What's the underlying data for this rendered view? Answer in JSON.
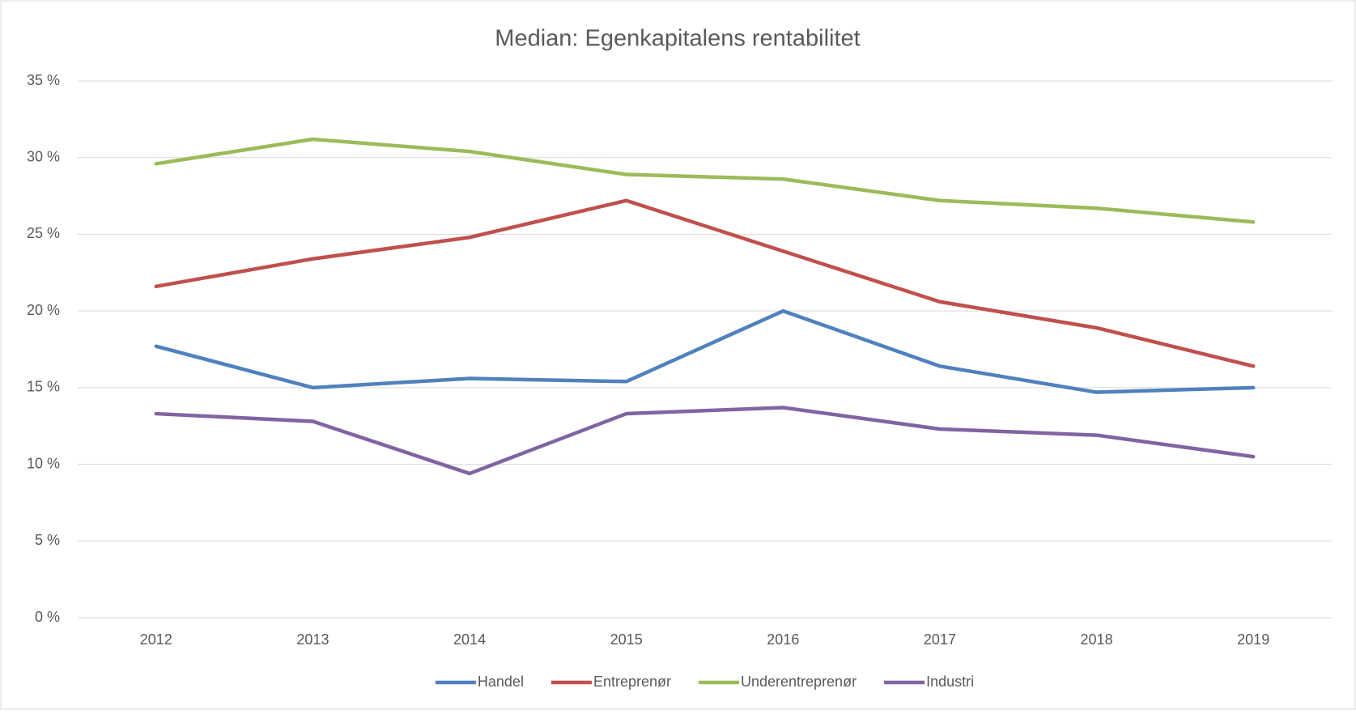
{
  "chart_data": {
    "type": "line",
    "title": "Median: Egenkapitalens rentabilitet",
    "categories": [
      "2012",
      "2013",
      "2014",
      "2015",
      "2016",
      "2017",
      "2018",
      "2019"
    ],
    "series": [
      {
        "name": "Handel",
        "color": "#4f81bd",
        "values": [
          17.7,
          15.0,
          15.6,
          15.4,
          20.0,
          16.4,
          14.7,
          15.0
        ]
      },
      {
        "name": "Entreprenør",
        "color": "#c0504d",
        "values": [
          21.6,
          23.4,
          24.8,
          27.2,
          23.9,
          20.6,
          18.9,
          16.4
        ]
      },
      {
        "name": "Underentreprenør",
        "color": "#9bbb59",
        "values": [
          29.6,
          31.2,
          30.4,
          28.9,
          28.6,
          27.2,
          26.7,
          25.8
        ]
      },
      {
        "name": "Industri",
        "color": "#8064a2",
        "values": [
          13.3,
          12.8,
          9.4,
          13.3,
          13.7,
          12.3,
          11.9,
          10.5
        ]
      }
    ],
    "ylim": [
      0,
      35
    ],
    "yticks": [
      {
        "value": 0,
        "label": "0 %"
      },
      {
        "value": 5,
        "label": "5 %"
      },
      {
        "value": 10,
        "label": "10 %"
      },
      {
        "value": 15,
        "label": "15 %"
      },
      {
        "value": 20,
        "label": "20 %"
      },
      {
        "value": 25,
        "label": "25 %"
      },
      {
        "value": 30,
        "label": "30 %"
      },
      {
        "value": 35,
        "label": "35 %"
      }
    ],
    "grid": true,
    "legend": "bottom"
  }
}
